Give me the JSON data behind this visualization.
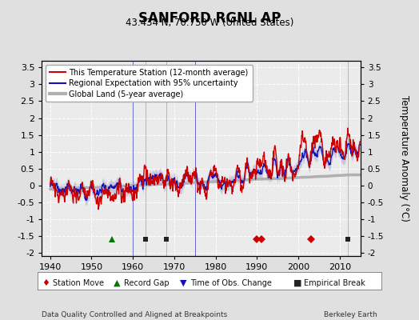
{
  "title": "SANFORD RGNL AP",
  "subtitle": "43.434 N, 70.750 W (United States)",
  "ylabel": "Temperature Anomaly (°C)",
  "footer_left": "Data Quality Controlled and Aligned at Breakpoints",
  "footer_right": "Berkeley Earth",
  "ylim": [
    -2.1,
    3.7
  ],
  "xlim": [
    1938,
    2015
  ],
  "yticks": [
    -2,
    -1.5,
    -1,
    -0.5,
    0,
    0.5,
    1,
    1.5,
    2,
    2.5,
    3,
    3.5
  ],
  "xticks": [
    1940,
    1950,
    1960,
    1970,
    1980,
    1990,
    2000,
    2010
  ],
  "bg_color": "#e0e0e0",
  "plot_bg_color": "#ebebeb",
  "grid_color": "#ffffff",
  "station_color": "#cc0000",
  "regional_color": "#1111bb",
  "regional_fill": "#aaaacc",
  "global_color": "#b0b0b0",
  "legend_labels": [
    "This Temperature Station (12-month average)",
    "Regional Expectation with 95% uncertainty",
    "Global Land (5-year average)"
  ],
  "marker_station_move_years": [
    1990,
    1991,
    2003
  ],
  "marker_record_gap_years": [
    1955
  ],
  "marker_tobs_years": [],
  "marker_emp_break_years": [
    1963,
    1968,
    2012
  ],
  "marker_station_move_color": "#cc0000",
  "marker_record_gap_color": "#007700",
  "marker_tobs_color": "#1111bb",
  "marker_emp_break_color": "#222222",
  "vline_years": [
    1960,
    1975
  ],
  "vline_color": "#1111bb"
}
